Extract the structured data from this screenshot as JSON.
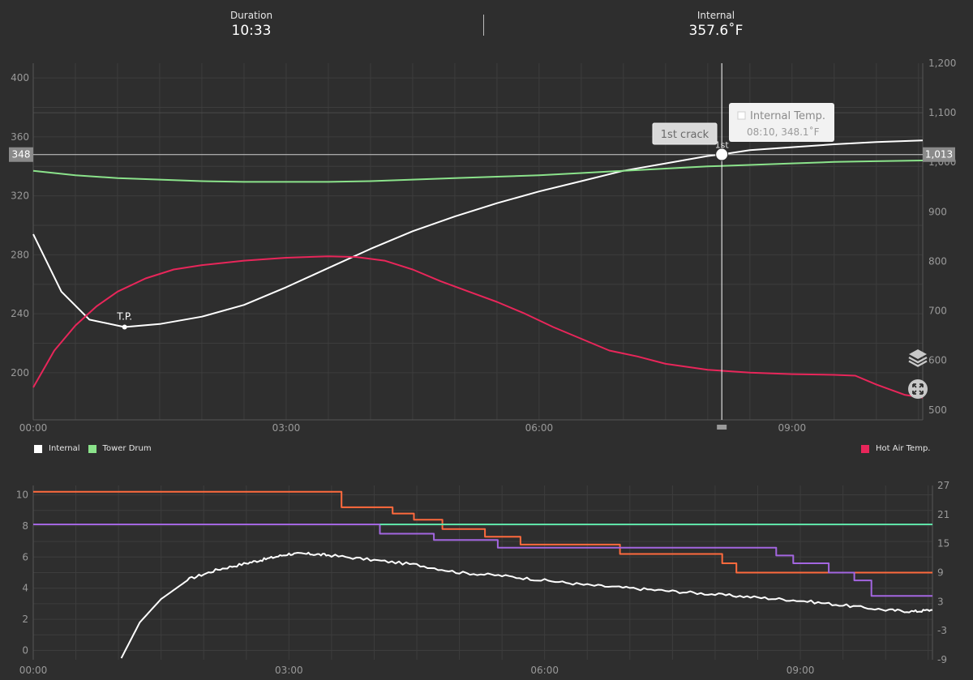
{
  "header": {
    "duration_label": "Duration",
    "duration_value": "10:33",
    "internal_label": "Internal",
    "internal_value": "357.6˚F"
  },
  "cursor": {
    "time": "08:10",
    "left_value": "348",
    "right_value": "1,013",
    "tooltip_title": "Internal Temp.",
    "tooltip_value": "08:10, 348.1˚F",
    "event_label": "1st crack",
    "event_short": "1st"
  },
  "markers": {
    "turning_point": "T.P."
  },
  "legend": {
    "internal": {
      "label": "Internal",
      "color": "#ffffff"
    },
    "drum": {
      "label": "Tower Drum",
      "color": "#8be38b"
    },
    "hotair": {
      "label": "Hot Air Temp.",
      "color": "#e8265a"
    }
  },
  "icons": [
    "layers-icon",
    "fullscreen-icon"
  ],
  "chart_data": [
    {
      "type": "line",
      "x_ticks": [
        "00:00",
        "03:00",
        "06:00",
        "09:00"
      ],
      "y_left_ticks": [
        "400",
        "360",
        "320",
        "280",
        "240",
        "200"
      ],
      "y_right_ticks": [
        "1,200",
        "1,100",
        "1,000",
        "900",
        "800",
        "700",
        "600",
        "500"
      ],
      "xlim_sec": [
        0,
        633
      ],
      "ylim_left": [
        168,
        410
      ],
      "ylim_right": [
        480,
        1200
      ],
      "series": [
        {
          "name": "Internal",
          "color": "#ffffff",
          "axis": "left",
          "x": [
            0,
            20,
            40,
            65,
            90,
            120,
            150,
            180,
            210,
            240,
            270,
            300,
            330,
            360,
            390,
            420,
            450,
            480,
            490,
            510,
            540,
            570,
            600,
            633
          ],
          "y": [
            294,
            255,
            236,
            231,
            233,
            238,
            246,
            258,
            271,
            284,
            296,
            306,
            315,
            323,
            330,
            337,
            342,
            347,
            348.1,
            351,
            353,
            355,
            356.5,
            357.6
          ]
        },
        {
          "name": "Tower Drum",
          "color": "#8be38b",
          "axis": "left",
          "x": [
            0,
            30,
            60,
            90,
            120,
            150,
            180,
            210,
            240,
            270,
            300,
            330,
            360,
            390,
            420,
            450,
            480,
            510,
            540,
            570,
            600,
            633
          ],
          "y": [
            337,
            334,
            332,
            331,
            330,
            329.5,
            329.5,
            329.5,
            330,
            331,
            332,
            333,
            334,
            335.5,
            337,
            338.5,
            340,
            341,
            342,
            343,
            343.5,
            344
          ]
        },
        {
          "name": "Hot Air Temp.",
          "color": "#e8265a",
          "axis": "left",
          "x": [
            0,
            15,
            30,
            45,
            60,
            80,
            100,
            120,
            150,
            180,
            210,
            230,
            250,
            270,
            290,
            310,
            330,
            350,
            370,
            390,
            410,
            430,
            450,
            480,
            510,
            540,
            570,
            585,
            600,
            620,
            633
          ],
          "y": [
            190,
            215,
            232,
            245,
            255,
            264,
            270,
            273,
            276,
            278,
            279,
            278.5,
            276,
            270,
            262,
            255,
            248,
            240,
            231,
            223,
            215,
            211,
            206,
            202,
            200,
            199,
            198.5,
            198,
            192,
            185,
            183
          ]
        }
      ]
    },
    {
      "type": "line",
      "x_ticks": [
        "00:00",
        "03:00",
        "06:00",
        "09:00"
      ],
      "y_left_ticks": [
        "10",
        "8",
        "6",
        "4",
        "2",
        "0"
      ],
      "y_right_ticks": [
        "27",
        "21",
        "15",
        "9",
        "3",
        "-3",
        "-9"
      ],
      "xlim_sec": [
        0,
        633
      ],
      "ylim_left": [
        -0.6,
        10.6
      ],
      "series": [
        {
          "color": "#ff6a3d",
          "step": true,
          "x": [
            0,
            217,
            253,
            268,
            288,
            318,
            343,
            413,
            453,
            485,
            495,
            633
          ],
          "y": [
            10.2,
            9.2,
            8.8,
            8.4,
            7.8,
            7.3,
            6.8,
            6.2,
            6.2,
            5.6,
            5.0,
            5.0
          ]
        },
        {
          "color": "#a366e0",
          "step": true,
          "x": [
            0,
            244,
            282,
            327,
            523,
            535,
            560,
            578,
            590,
            633
          ],
          "y": [
            8.1,
            7.5,
            7.1,
            6.6,
            6.1,
            5.6,
            5.0,
            4.5,
            3.5,
            3.5
          ]
        },
        {
          "color": "#5fe3a8",
          "step": false,
          "x": [
            244,
            633
          ],
          "y": [
            8.1,
            8.1
          ]
        },
        {
          "color": "#ffffff",
          "step": false,
          "noisy": true,
          "x": [
            62,
            75,
            90,
            110,
            130,
            150,
            165,
            180,
            195,
            210,
            240,
            270,
            300,
            330,
            360,
            390,
            420,
            450,
            480,
            510,
            540,
            570,
            600,
            620,
            633
          ],
          "y": [
            -0.5,
            1.8,
            3.3,
            4.6,
            5.2,
            5.6,
            5.9,
            6.2,
            6.2,
            6.1,
            5.8,
            5.5,
            5.0,
            4.8,
            4.5,
            4.2,
            4.0,
            3.8,
            3.6,
            3.4,
            3.2,
            2.9,
            2.6,
            2.5,
            2.6
          ]
        }
      ]
    }
  ]
}
